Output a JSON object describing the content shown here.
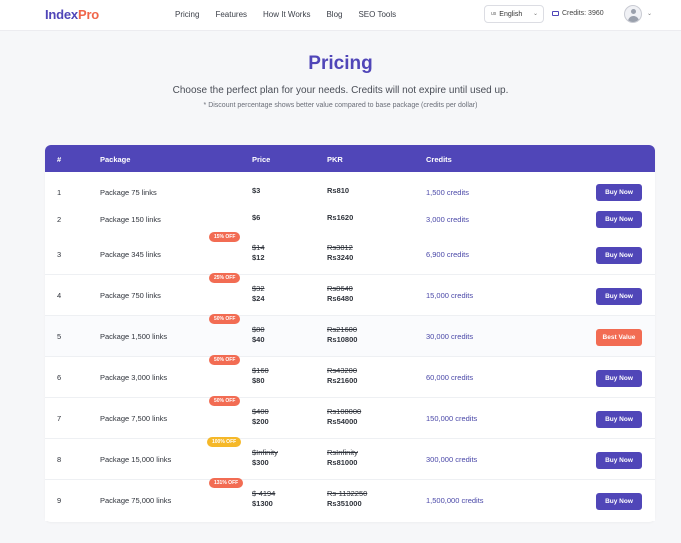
{
  "header": {
    "logo_part1": "Index",
    "logo_part2": "Pro",
    "nav": [
      "Pricing",
      "Features",
      "How It Works",
      "Blog",
      "SEO Tools"
    ],
    "language_flag": "us",
    "language": "English",
    "credits_label": "Credits: 3960"
  },
  "page": {
    "title": "Pricing",
    "subtitle": "Choose the perfect plan for your needs. Credits will not expire until used up.",
    "note": "* Discount percentage shows better value compared to base package (credits per dollar)"
  },
  "table": {
    "columns": [
      "#",
      "Package",
      "Price",
      "PKR",
      "Credits"
    ],
    "rows": [
      {
        "num": "1",
        "package": "Package 75 links",
        "badge": "",
        "old_price": "",
        "price": "$3",
        "old_pkr": "",
        "pkr": "Rs810",
        "credits": "1,500 credits",
        "button": "Buy Now"
      },
      {
        "num": "2",
        "package": "Package 150 links",
        "badge": "",
        "old_price": "",
        "price": "$6",
        "old_pkr": "",
        "pkr": "Rs1620",
        "credits": "3,000 credits",
        "button": "Buy Now"
      },
      {
        "num": "3",
        "package": "Package 345 links",
        "badge": "15% OFF",
        "old_price": "$14",
        "price": "$12",
        "old_pkr": "Rs3812",
        "pkr": "Rs3240",
        "credits": "6,900 credits",
        "button": "Buy Now"
      },
      {
        "num": "4",
        "package": "Package 750 links",
        "badge": "25% OFF",
        "old_price": "$32",
        "price": "$24",
        "old_pkr": "Rs8640",
        "pkr": "Rs6480",
        "credits": "15,000 credits",
        "button": "Buy Now"
      },
      {
        "num": "5",
        "package": "Package 1,500 links",
        "badge": "50% OFF",
        "old_price": "$80",
        "price": "$40",
        "old_pkr": "Rs21600",
        "pkr": "Rs10800",
        "credits": "30,000 credits",
        "button": "Best Value"
      },
      {
        "num": "6",
        "package": "Package 3,000 links",
        "badge": "50% OFF",
        "old_price": "$160",
        "price": "$80",
        "old_pkr": "Rs43200",
        "pkr": "Rs21600",
        "credits": "60,000 credits",
        "button": "Buy Now"
      },
      {
        "num": "7",
        "package": "Package 7,500 links",
        "badge": "50% OFF",
        "old_price": "$400",
        "price": "$200",
        "old_pkr": "Rs108000",
        "pkr": "Rs54000",
        "credits": "150,000 credits",
        "button": "Buy Now"
      },
      {
        "num": "8",
        "package": "Package 15,000 links",
        "badge": "100% OFF",
        "old_price": "$Infinity",
        "price": "$300",
        "old_pkr": "RsInfinity",
        "pkr": "Rs81000",
        "credits": "300,000 credits",
        "button": "Buy Now"
      },
      {
        "num": "9",
        "package": "Package 75,000 links",
        "badge": "131% OFF",
        "old_price": "$-4194",
        "price": "$1300",
        "old_pkr": "Rs-1132250",
        "pkr": "Rs351000",
        "credits": "1,500,000 credits",
        "button": "Buy Now"
      }
    ]
  },
  "colors": {
    "brand": "#5046b8",
    "accent": "#f26c53",
    "badge_yellow": "#f5b829",
    "pkr_green": "#1f9a4b"
  }
}
